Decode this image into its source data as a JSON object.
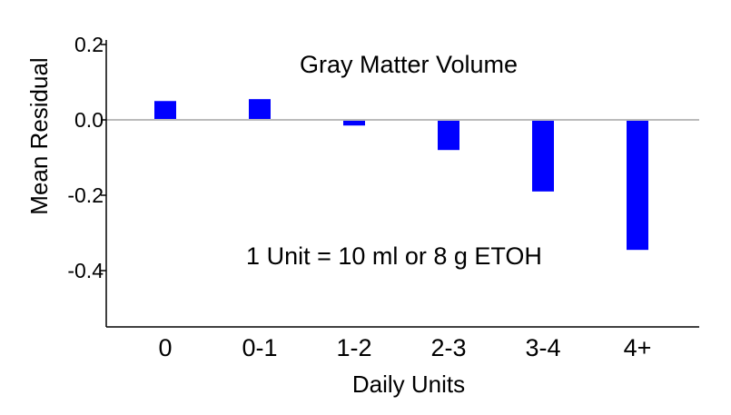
{
  "chart_data": {
    "type": "bar",
    "title": "Gray Matter Volume",
    "annotation": "1 Unit = 10 ml or 8 g ETOH",
    "xlabel": "Daily Units",
    "ylabel": "Mean Residual",
    "categories": [
      "0",
      "0-1",
      "1-2",
      "2-3",
      "3-4",
      "4+"
    ],
    "values": [
      0.05,
      0.055,
      -0.015,
      -0.08,
      -0.19,
      -0.345
    ],
    "ylim": [
      -0.55,
      0.22
    ],
    "yticks": [
      0.2,
      0.0,
      -0.2,
      -0.4
    ],
    "ytick_labels": [
      "0.2",
      "0.0",
      "-0.2",
      "-0.4"
    ],
    "bar_color": "#0000ff",
    "zero_line_color": "#bbbbbb",
    "grid": false
  }
}
